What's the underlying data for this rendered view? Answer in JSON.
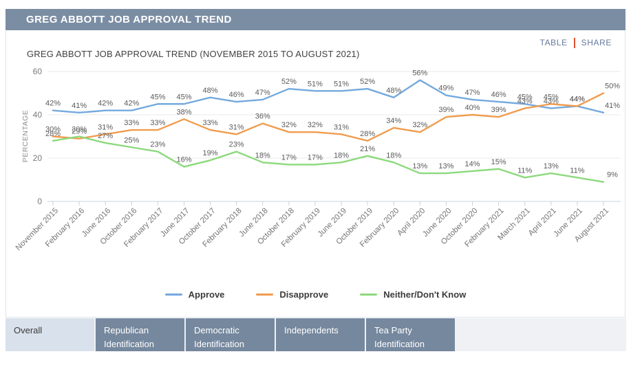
{
  "header": {
    "title": "GREG ABBOTT JOB APPROVAL TREND"
  },
  "toolbar": {
    "table_label": "TABLE",
    "share_label": "SHARE"
  },
  "chart_data": {
    "type": "line",
    "title": "GREG ABBOTT JOB APPROVAL TREND (NOVEMBER 2015 TO AUGUST 2021)",
    "xlabel": "",
    "ylabel": "PERCENTAGE",
    "ylim": [
      0,
      60
    ],
    "yticks": [
      0,
      20,
      40,
      60
    ],
    "grid": true,
    "legend_position": "bottom",
    "data_label_suffix": "%",
    "categories": [
      "November 2015",
      "February 2016",
      "June 2016",
      "October 2016",
      "February 2017",
      "June 2017",
      "October 2017",
      "February 2018",
      "June 2018",
      "October 2018",
      "February 2019",
      "June 2019",
      "October 2019",
      "February 2020",
      "April 2020",
      "June 2020",
      "October 2020",
      "February 2021",
      "March 2021",
      "April 2021",
      "June 2021",
      "August 2021"
    ],
    "series": [
      {
        "name": "Approve",
        "color": "#74a9dd",
        "values": [
          42,
          41,
          42,
          42,
          45,
          45,
          48,
          46,
          47,
          52,
          51,
          51,
          52,
          48,
          56,
          49,
          47,
          46,
          45,
          43,
          44,
          41
        ]
      },
      {
        "name": "Disapprove",
        "color": "#f09c4e",
        "values": [
          30,
          29,
          31,
          33,
          33,
          38,
          33,
          31,
          36,
          32,
          32,
          31,
          28,
          34,
          32,
          39,
          40,
          39,
          43,
          45,
          44,
          50
        ]
      },
      {
        "name": "Neither/Don't Know",
        "color": "#8cd97c",
        "values": [
          28,
          30,
          27,
          25,
          23,
          16,
          19,
          23,
          18,
          17,
          17,
          18,
          21,
          18,
          13,
          13,
          14,
          15,
          11,
          13,
          11,
          9
        ]
      }
    ]
  },
  "tabs": [
    {
      "label": "Overall",
      "active": true
    },
    {
      "label": "Republican Identification",
      "active": false
    },
    {
      "label": "Democratic Identification",
      "active": false
    },
    {
      "label": "Independents",
      "active": false
    },
    {
      "label": "Tea Party Identification",
      "active": false
    }
  ],
  "colors": {
    "header_bg": "#7b8da3",
    "card_border": "#dfe3e8",
    "toolbar_link": "#64789c",
    "toolbar_divider": "#e2512e",
    "tabbar_bg": "#eff1f4",
    "tab_active_bg": "#d9e1ec",
    "tab_inactive_bg": "#76889e"
  }
}
